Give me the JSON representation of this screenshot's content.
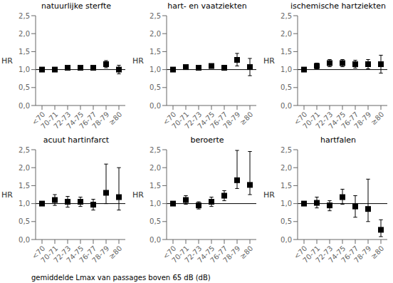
{
  "chart_data": [
    {
      "type": "scatter",
      "title": "natuurlijke sterfte",
      "categories": [
        "<70",
        "70-71",
        "72-73",
        "74-75",
        "76-77",
        "78-79",
        "≥80"
      ],
      "values": [
        1.0,
        1.0,
        1.05,
        1.05,
        1.05,
        1.15,
        1.0
      ],
      "ci_lo": [
        1.0,
        0.97,
        1.02,
        1.02,
        1.02,
        1.05,
        0.88
      ],
      "ci_hi": [
        1.0,
        1.03,
        1.08,
        1.08,
        1.08,
        1.25,
        1.12
      ],
      "ylabel": "HR",
      "ylim": [
        0.0,
        2.5
      ],
      "yticks": [
        {
          "value": 0.0,
          "label": "0,0"
        },
        {
          "value": 0.5,
          "label": "0,5"
        },
        {
          "value": 1.0,
          "label": "1,0"
        },
        {
          "value": 1.5,
          "label": "1,5"
        },
        {
          "value": 2.0,
          "label": "2,0"
        },
        {
          "value": 2.5,
          "label": "2,5"
        }
      ],
      "ref_line": 1.0,
      "marker": "square",
      "color": "black",
      "grid": false
    },
    {
      "type": "scatter",
      "title": "hart- en vaatziekten",
      "categories": [
        "<70",
        "70-71",
        "72-73",
        "74-75",
        "76-77",
        "78-79",
        "≥80"
      ],
      "values": [
        1.0,
        1.07,
        1.05,
        1.1,
        1.05,
        1.27,
        1.07
      ],
      "ci_lo": [
        1.0,
        1.02,
        1.0,
        1.04,
        0.98,
        1.1,
        0.83
      ],
      "ci_hi": [
        1.0,
        1.12,
        1.1,
        1.16,
        1.12,
        1.45,
        1.31
      ],
      "ylabel": "HR",
      "ylim": [
        0.0,
        2.5
      ],
      "yticks": [
        {
          "value": 0.0,
          "label": "0,0"
        },
        {
          "value": 0.5,
          "label": "0,5"
        },
        {
          "value": 1.0,
          "label": "1,0"
        },
        {
          "value": 1.5,
          "label": "1,5"
        },
        {
          "value": 2.0,
          "label": "2,0"
        },
        {
          "value": 2.5,
          "label": "2,5"
        }
      ],
      "ref_line": 1.0,
      "marker": "square",
      "color": "black",
      "grid": false
    },
    {
      "type": "scatter",
      "title": "ischemische hartziekten",
      "categories": [
        "<70",
        "70-71",
        "72-73",
        "74-75",
        "76-77",
        "78-79",
        "≥80"
      ],
      "values": [
        1.0,
        1.1,
        1.18,
        1.18,
        1.15,
        1.15,
        1.15
      ],
      "ci_lo": [
        1.0,
        1.02,
        1.08,
        1.08,
        1.04,
        1.02,
        0.9
      ],
      "ci_hi": [
        1.0,
        1.18,
        1.28,
        1.28,
        1.26,
        1.28,
        1.4
      ],
      "ylabel": "HR",
      "ylim": [
        0.0,
        2.5
      ],
      "yticks": [
        {
          "value": 0.0,
          "label": "0,0"
        },
        {
          "value": 0.5,
          "label": "0,5"
        },
        {
          "value": 1.0,
          "label": "1,0"
        },
        {
          "value": 1.5,
          "label": "1,5"
        },
        {
          "value": 2.0,
          "label": "2,0"
        },
        {
          "value": 2.5,
          "label": "2,5"
        }
      ],
      "ref_line": 1.0,
      "marker": "square",
      "color": "black",
      "grid": false
    },
    {
      "type": "scatter",
      "title": "acuut hartinfarct",
      "categories": [
        "<70",
        "70-71",
        "72-73",
        "74-75",
        "76-77",
        "78-79",
        "≥80"
      ],
      "values": [
        1.0,
        1.1,
        1.05,
        1.05,
        0.97,
        1.3,
        1.18
      ],
      "ci_lo": [
        1.0,
        0.95,
        0.9,
        0.92,
        0.82,
        1.0,
        0.82
      ],
      "ci_hi": [
        1.0,
        1.25,
        1.2,
        1.18,
        1.12,
        2.1,
        2.0
      ],
      "ylabel": "HR",
      "ylim": [
        0.0,
        2.5
      ],
      "yticks": [
        {
          "value": 0.0,
          "label": "0,0"
        },
        {
          "value": 0.5,
          "label": "0,5"
        },
        {
          "value": 1.0,
          "label": "1,0"
        },
        {
          "value": 1.5,
          "label": "1,5"
        },
        {
          "value": 2.0,
          "label": "2,0"
        },
        {
          "value": 2.5,
          "label": "2,5"
        }
      ],
      "ref_line": 1.0,
      "marker": "square",
      "color": "black",
      "grid": false
    },
    {
      "type": "scatter",
      "title": "beroerte",
      "categories": [
        "<70",
        "70-71",
        "72-73",
        "74-75",
        "76-77",
        "78-79",
        "≥80"
      ],
      "values": [
        1.0,
        1.1,
        0.95,
        1.05,
        1.22,
        1.65,
        1.52
      ],
      "ci_lo": [
        1.0,
        0.98,
        0.85,
        0.92,
        1.08,
        1.42,
        1.25
      ],
      "ci_hi": [
        1.0,
        1.22,
        1.05,
        1.18,
        1.36,
        2.48,
        2.45
      ],
      "ylabel": "HR",
      "ylim": [
        0.0,
        2.5
      ],
      "yticks": [
        {
          "value": 0.0,
          "label": "0,0"
        },
        {
          "value": 0.5,
          "label": "0,5"
        },
        {
          "value": 1.0,
          "label": "1,0"
        },
        {
          "value": 1.5,
          "label": "1,5"
        },
        {
          "value": 2.0,
          "label": "2,0"
        },
        {
          "value": 2.5,
          "label": "2,5"
        }
      ],
      "ref_line": 1.0,
      "marker": "square",
      "color": "black",
      "grid": false
    },
    {
      "type": "scatter",
      "title": "hartfalen",
      "categories": [
        "<70",
        "70-71",
        "72-73",
        "74-75",
        "76-77",
        "78-79",
        "≥80"
      ],
      "values": [
        1.0,
        1.02,
        0.95,
        1.18,
        0.92,
        0.85,
        0.27
      ],
      "ci_lo": [
        1.0,
        0.88,
        0.8,
        0.98,
        0.62,
        0.5,
        0.08
      ],
      "ci_hi": [
        1.0,
        1.18,
        1.08,
        1.4,
        1.22,
        1.68,
        0.55
      ],
      "ylabel": "HR",
      "ylim": [
        0.0,
        2.5
      ],
      "yticks": [
        {
          "value": 0.0,
          "label": "0,0"
        },
        {
          "value": 0.5,
          "label": "0,5"
        },
        {
          "value": 1.0,
          "label": "1,0"
        },
        {
          "value": 1.5,
          "label": "1,5"
        },
        {
          "value": 2.0,
          "label": "2,0"
        },
        {
          "value": 2.5,
          "label": "2,5"
        }
      ],
      "ref_line": 1.0,
      "marker": "square",
      "color": "black",
      "grid": false
    }
  ],
  "xlabel": "gemiddelde Lmax van passages boven 65 dB (dB)"
}
